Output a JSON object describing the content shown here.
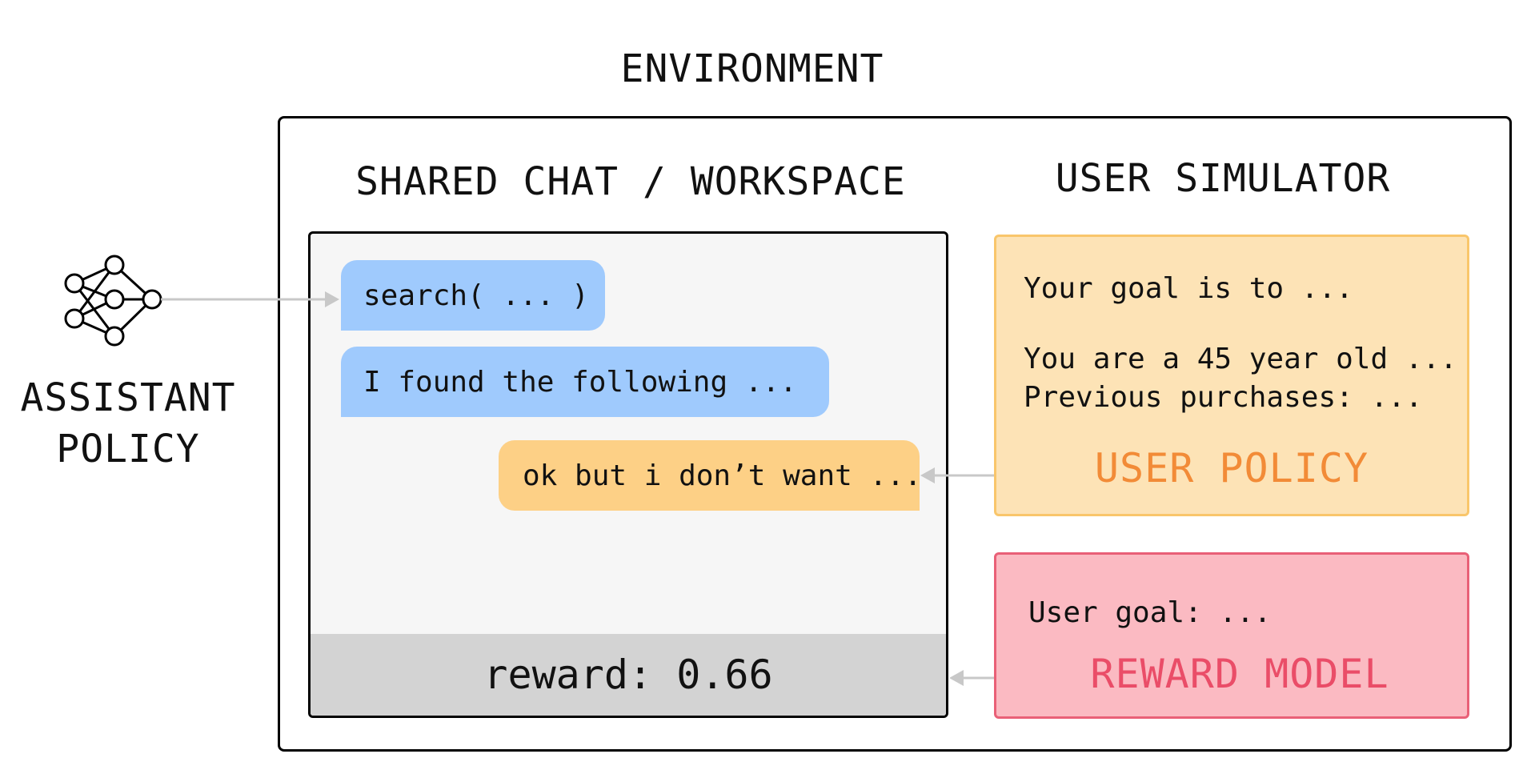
{
  "environment_title": "ENVIRONMENT",
  "workspace": {
    "title": "SHARED CHAT / WORKSPACE",
    "messages": [
      {
        "text": "search( ... )",
        "role": "assistant"
      },
      {
        "text": "I found the following ...",
        "role": "assistant"
      },
      {
        "text": "ok but i don’t want ...",
        "role": "user"
      }
    ],
    "reward_text": "reward: 0.66"
  },
  "user_simulator": {
    "title": "USER SIMULATOR",
    "user_policy": {
      "lines": [
        "Your goal is to ...",
        "You are a 45 year old ...",
        "Previous purchases: ..."
      ],
      "label": "USER POLICY"
    },
    "reward_model": {
      "lines": [
        "User goal: ..."
      ],
      "label": "REWARD MODEL"
    }
  },
  "assistant": {
    "label_line1": "ASSISTANT",
    "label_line2": "POLICY",
    "icon": "neural-network-icon"
  },
  "colors": {
    "assistant_bubble": "#9fcafd",
    "user_bubble": "#fdd086",
    "user_policy_fill": "#fde3b6",
    "user_policy_accent": "#f28b37",
    "reward_model_fill": "#fbbac2",
    "reward_model_accent": "#ea4d68",
    "workspace_fill": "#f6f6f6",
    "reward_bar_fill": "#d3d3d3",
    "arrow": "#c8c8c8"
  }
}
